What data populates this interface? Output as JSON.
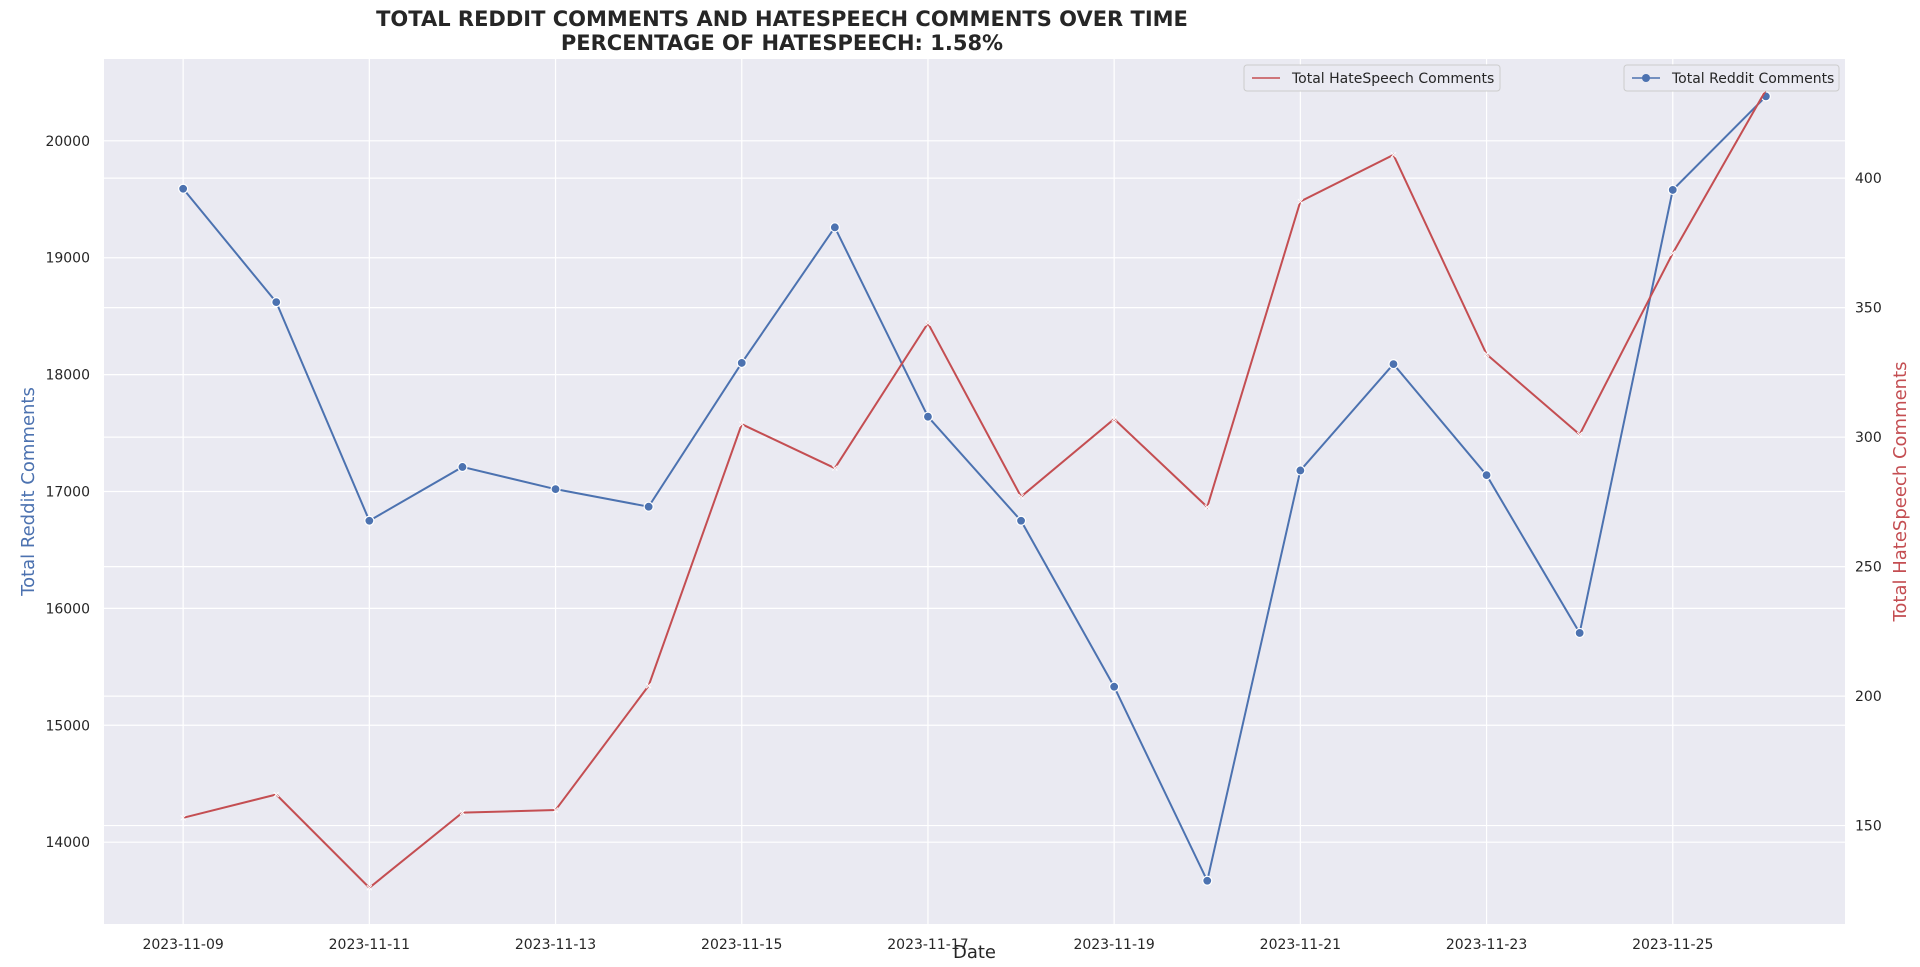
{
  "colors": {
    "reddit": "#4c72b0",
    "hate": "#c44e52",
    "plot_bg": "#eaeaf2",
    "grid": "#ffffff",
    "text": "#262626"
  },
  "chart_data": {
    "type": "line",
    "title_line1": "TOTAL REDDIT COMMENTS AND HATESPEECH COMMENTS OVER TIME",
    "title_line2": "PERCENTAGE OF HATESPEECH: 1.58%",
    "xlabel": "Date",
    "ylabel_left": "Total Reddit Comments",
    "ylabel_right": "Total HateSpeech Comments",
    "x": [
      "2023-11-09",
      "2023-11-10",
      "2023-11-11",
      "2023-11-12",
      "2023-11-13",
      "2023-11-14",
      "2023-11-15",
      "2023-11-16",
      "2023-11-17",
      "2023-11-18",
      "2023-11-19",
      "2023-11-20",
      "2023-11-21",
      "2023-11-22",
      "2023-11-23",
      "2023-11-24",
      "2023-11-25",
      "2023-11-26"
    ],
    "x_ticks": [
      "2023-11-09",
      "2023-11-11",
      "2023-11-13",
      "2023-11-15",
      "2023-11-17",
      "2023-11-19",
      "2023-11-21",
      "2023-11-23",
      "2023-11-25"
    ],
    "ylim_left": [
      13300,
      20700
    ],
    "yticks_left": [
      14000,
      15000,
      16000,
      17000,
      18000,
      19000,
      20000
    ],
    "ylim_right": [
      112,
      446
    ],
    "yticks_right": [
      150,
      200,
      250,
      300,
      350,
      400
    ],
    "grid": true,
    "series": [
      {
        "name": "Total Reddit Comments",
        "axis": "left",
        "marker": "circle",
        "values": [
          19590,
          18620,
          16750,
          17210,
          17020,
          16870,
          18100,
          19260,
          17640,
          16750,
          15330,
          13670,
          17180,
          18090,
          17140,
          15790,
          19580,
          20380
        ]
      },
      {
        "name": "Total HateSpeech Comments",
        "axis": "right",
        "marker": "x",
        "values": [
          153,
          162,
          126,
          155,
          156,
          204,
          305,
          288,
          344,
          277,
          307,
          273,
          391,
          409,
          332,
          301,
          371,
          434
        ]
      }
    ],
    "legend_left_label": "Total HateSpeech Comments",
    "legend_right_label": "Total Reddit Comments",
    "legend_placement": "top-right"
  }
}
